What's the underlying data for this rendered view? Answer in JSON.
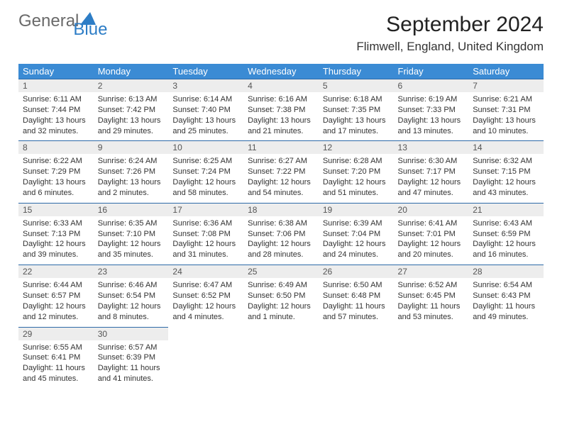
{
  "brand": {
    "general": "General",
    "blue": "Blue"
  },
  "title": "September 2024",
  "location": "Flimwell, England, United Kingdom",
  "day_headers": [
    "Sunday",
    "Monday",
    "Tuesday",
    "Wednesday",
    "Thursday",
    "Friday",
    "Saturday"
  ],
  "colors": {
    "header_bg": "#3b8bd4",
    "daynum_bg": "#ededed",
    "rule": "#2d6aa8"
  },
  "weeks": [
    [
      {
        "n": "1",
        "sr": "Sunrise: 6:11 AM",
        "ss": "Sunset: 7:44 PM",
        "d1": "Daylight: 13 hours",
        "d2": "and 32 minutes."
      },
      {
        "n": "2",
        "sr": "Sunrise: 6:13 AM",
        "ss": "Sunset: 7:42 PM",
        "d1": "Daylight: 13 hours",
        "d2": "and 29 minutes."
      },
      {
        "n": "3",
        "sr": "Sunrise: 6:14 AM",
        "ss": "Sunset: 7:40 PM",
        "d1": "Daylight: 13 hours",
        "d2": "and 25 minutes."
      },
      {
        "n": "4",
        "sr": "Sunrise: 6:16 AM",
        "ss": "Sunset: 7:38 PM",
        "d1": "Daylight: 13 hours",
        "d2": "and 21 minutes."
      },
      {
        "n": "5",
        "sr": "Sunrise: 6:18 AM",
        "ss": "Sunset: 7:35 PM",
        "d1": "Daylight: 13 hours",
        "d2": "and 17 minutes."
      },
      {
        "n": "6",
        "sr": "Sunrise: 6:19 AM",
        "ss": "Sunset: 7:33 PM",
        "d1": "Daylight: 13 hours",
        "d2": "and 13 minutes."
      },
      {
        "n": "7",
        "sr": "Sunrise: 6:21 AM",
        "ss": "Sunset: 7:31 PM",
        "d1": "Daylight: 13 hours",
        "d2": "and 10 minutes."
      }
    ],
    [
      {
        "n": "8",
        "sr": "Sunrise: 6:22 AM",
        "ss": "Sunset: 7:29 PM",
        "d1": "Daylight: 13 hours",
        "d2": "and 6 minutes."
      },
      {
        "n": "9",
        "sr": "Sunrise: 6:24 AM",
        "ss": "Sunset: 7:26 PM",
        "d1": "Daylight: 13 hours",
        "d2": "and 2 minutes."
      },
      {
        "n": "10",
        "sr": "Sunrise: 6:25 AM",
        "ss": "Sunset: 7:24 PM",
        "d1": "Daylight: 12 hours",
        "d2": "and 58 minutes."
      },
      {
        "n": "11",
        "sr": "Sunrise: 6:27 AM",
        "ss": "Sunset: 7:22 PM",
        "d1": "Daylight: 12 hours",
        "d2": "and 54 minutes."
      },
      {
        "n": "12",
        "sr": "Sunrise: 6:28 AM",
        "ss": "Sunset: 7:20 PM",
        "d1": "Daylight: 12 hours",
        "d2": "and 51 minutes."
      },
      {
        "n": "13",
        "sr": "Sunrise: 6:30 AM",
        "ss": "Sunset: 7:17 PM",
        "d1": "Daylight: 12 hours",
        "d2": "and 47 minutes."
      },
      {
        "n": "14",
        "sr": "Sunrise: 6:32 AM",
        "ss": "Sunset: 7:15 PM",
        "d1": "Daylight: 12 hours",
        "d2": "and 43 minutes."
      }
    ],
    [
      {
        "n": "15",
        "sr": "Sunrise: 6:33 AM",
        "ss": "Sunset: 7:13 PM",
        "d1": "Daylight: 12 hours",
        "d2": "and 39 minutes."
      },
      {
        "n": "16",
        "sr": "Sunrise: 6:35 AM",
        "ss": "Sunset: 7:10 PM",
        "d1": "Daylight: 12 hours",
        "d2": "and 35 minutes."
      },
      {
        "n": "17",
        "sr": "Sunrise: 6:36 AM",
        "ss": "Sunset: 7:08 PM",
        "d1": "Daylight: 12 hours",
        "d2": "and 31 minutes."
      },
      {
        "n": "18",
        "sr": "Sunrise: 6:38 AM",
        "ss": "Sunset: 7:06 PM",
        "d1": "Daylight: 12 hours",
        "d2": "and 28 minutes."
      },
      {
        "n": "19",
        "sr": "Sunrise: 6:39 AM",
        "ss": "Sunset: 7:04 PM",
        "d1": "Daylight: 12 hours",
        "d2": "and 24 minutes."
      },
      {
        "n": "20",
        "sr": "Sunrise: 6:41 AM",
        "ss": "Sunset: 7:01 PM",
        "d1": "Daylight: 12 hours",
        "d2": "and 20 minutes."
      },
      {
        "n": "21",
        "sr": "Sunrise: 6:43 AM",
        "ss": "Sunset: 6:59 PM",
        "d1": "Daylight: 12 hours",
        "d2": "and 16 minutes."
      }
    ],
    [
      {
        "n": "22",
        "sr": "Sunrise: 6:44 AM",
        "ss": "Sunset: 6:57 PM",
        "d1": "Daylight: 12 hours",
        "d2": "and 12 minutes."
      },
      {
        "n": "23",
        "sr": "Sunrise: 6:46 AM",
        "ss": "Sunset: 6:54 PM",
        "d1": "Daylight: 12 hours",
        "d2": "and 8 minutes."
      },
      {
        "n": "24",
        "sr": "Sunrise: 6:47 AM",
        "ss": "Sunset: 6:52 PM",
        "d1": "Daylight: 12 hours",
        "d2": "and 4 minutes."
      },
      {
        "n": "25",
        "sr": "Sunrise: 6:49 AM",
        "ss": "Sunset: 6:50 PM",
        "d1": "Daylight: 12 hours",
        "d2": "and 1 minute."
      },
      {
        "n": "26",
        "sr": "Sunrise: 6:50 AM",
        "ss": "Sunset: 6:48 PM",
        "d1": "Daylight: 11 hours",
        "d2": "and 57 minutes."
      },
      {
        "n": "27",
        "sr": "Sunrise: 6:52 AM",
        "ss": "Sunset: 6:45 PM",
        "d1": "Daylight: 11 hours",
        "d2": "and 53 minutes."
      },
      {
        "n": "28",
        "sr": "Sunrise: 6:54 AM",
        "ss": "Sunset: 6:43 PM",
        "d1": "Daylight: 11 hours",
        "d2": "and 49 minutes."
      }
    ],
    [
      {
        "n": "29",
        "sr": "Sunrise: 6:55 AM",
        "ss": "Sunset: 6:41 PM",
        "d1": "Daylight: 11 hours",
        "d2": "and 45 minutes."
      },
      {
        "n": "30",
        "sr": "Sunrise: 6:57 AM",
        "ss": "Sunset: 6:39 PM",
        "d1": "Daylight: 11 hours",
        "d2": "and 41 minutes."
      },
      {
        "n": "",
        "sr": "",
        "ss": "",
        "d1": "",
        "d2": ""
      },
      {
        "n": "",
        "sr": "",
        "ss": "",
        "d1": "",
        "d2": ""
      },
      {
        "n": "",
        "sr": "",
        "ss": "",
        "d1": "",
        "d2": ""
      },
      {
        "n": "",
        "sr": "",
        "ss": "",
        "d1": "",
        "d2": ""
      },
      {
        "n": "",
        "sr": "",
        "ss": "",
        "d1": "",
        "d2": ""
      }
    ]
  ]
}
